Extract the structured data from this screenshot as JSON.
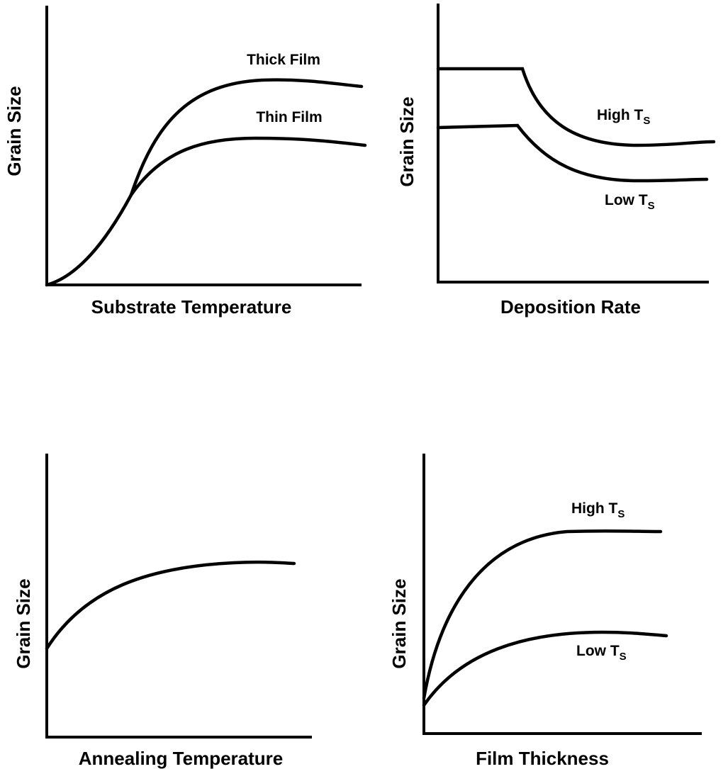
{
  "panels": [
    {
      "y_label": "Grain Size",
      "x_label": "Substrate Temperature",
      "curves": [
        {
          "label": {
            "text": "Thick Film"
          }
        },
        {
          "label": {
            "text": "Thin Film"
          }
        }
      ]
    },
    {
      "y_label": "Grain Size",
      "x_label": "Deposition Rate",
      "curves": [
        {
          "label": {
            "text": "High T",
            "subscript": "S"
          }
        },
        {
          "label": {
            "text": "Low T",
            "subscript": "S"
          }
        }
      ]
    },
    {
      "y_label": "Grain Size",
      "x_label": "Annealing Temperature",
      "curves": []
    },
    {
      "y_label": "Grain Size",
      "x_label": "Film Thickness",
      "curves": [
        {
          "label": {
            "text": "High T",
            "subscript": "S"
          }
        },
        {
          "label": {
            "text": "Low T",
            "subscript": "S"
          }
        }
      ]
    }
  ]
}
